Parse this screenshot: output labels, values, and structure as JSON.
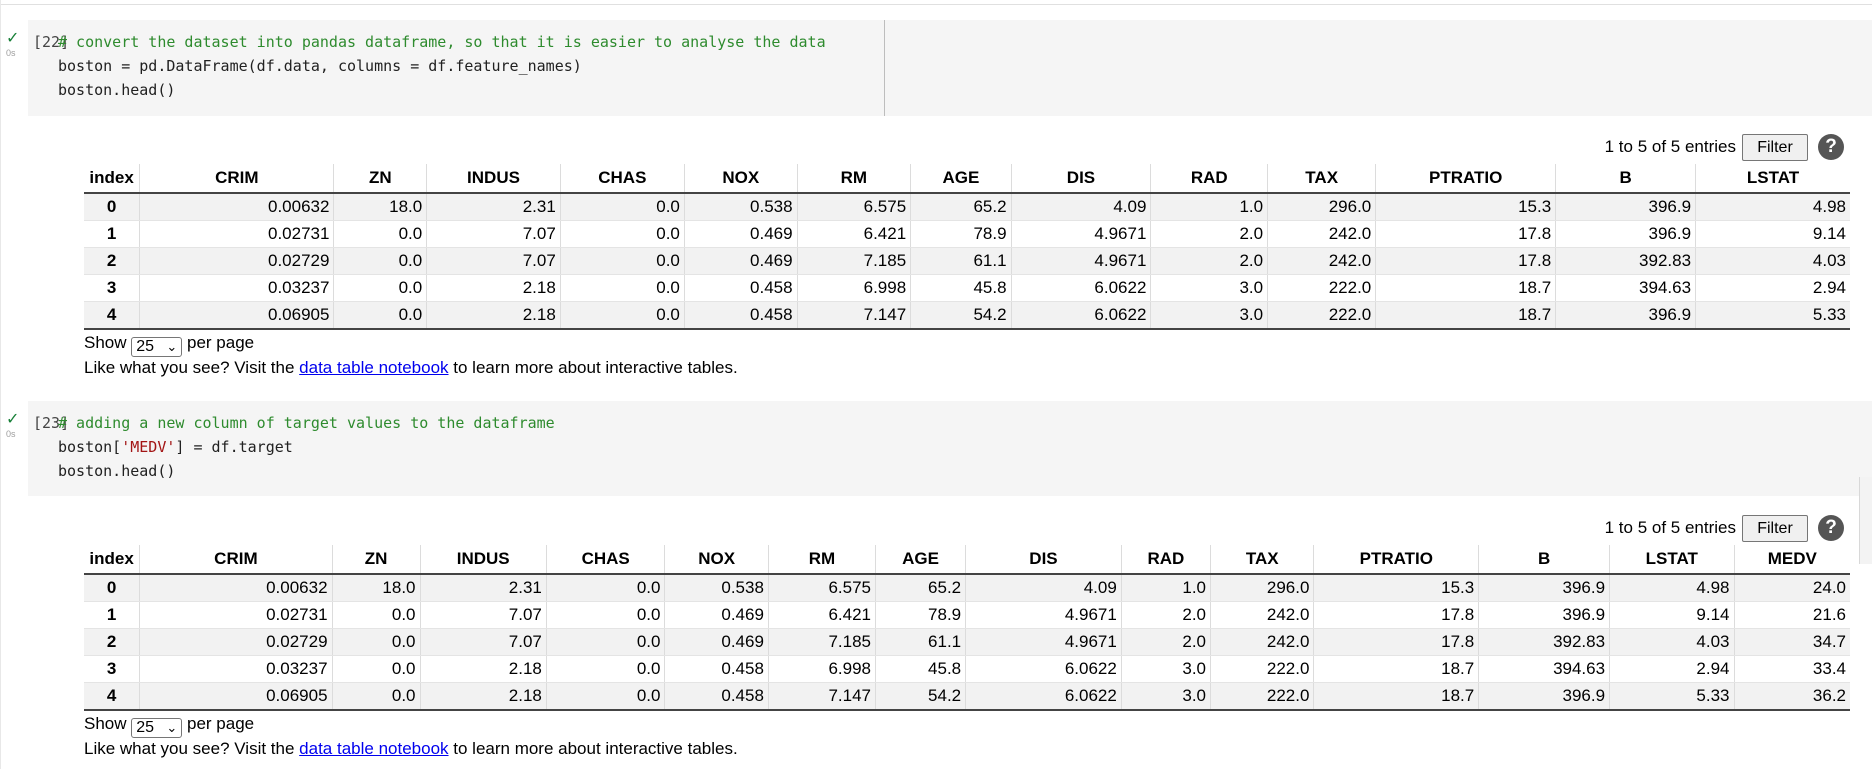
{
  "cells": [
    {
      "exec_count": "[22]",
      "run_time": "0s",
      "code": [
        {
          "comment": "# convert the dataset into pandas dataframe, so that it is easier to analyse the data"
        },
        {
          "text": "boston = pd.DataFrame(df.data, columns = df.feature_names)"
        },
        {
          "text": "boston.head()"
        }
      ],
      "output": {
        "entries_text": "1 to 5 of 5 entries",
        "filter_label": "Filter",
        "help_label": "?",
        "columns": [
          "index",
          "CRIM",
          "ZN",
          "INDUS",
          "CHAS",
          "NOX",
          "RM",
          "AGE",
          "DIS",
          "RAD",
          "TAX",
          "PTRATIO",
          "B",
          "LSTAT"
        ],
        "rows": [
          [
            "0",
            "0.00632",
            "18.0",
            "2.31",
            "0.0",
            "0.538",
            "6.575",
            "65.2",
            "4.09",
            "1.0",
            "296.0",
            "15.3",
            "396.9",
            "4.98"
          ],
          [
            "1",
            "0.02731",
            "0.0",
            "7.07",
            "0.0",
            "0.469",
            "6.421",
            "78.9",
            "4.9671",
            "2.0",
            "242.0",
            "17.8",
            "396.9",
            "9.14"
          ],
          [
            "2",
            "0.02729",
            "0.0",
            "7.07",
            "0.0",
            "0.469",
            "7.185",
            "61.1",
            "4.9671",
            "2.0",
            "242.0",
            "17.8",
            "392.83",
            "4.03"
          ],
          [
            "3",
            "0.03237",
            "0.0",
            "2.18",
            "0.0",
            "0.458",
            "6.998",
            "45.8",
            "6.0622",
            "3.0",
            "222.0",
            "18.7",
            "394.63",
            "2.94"
          ],
          [
            "4",
            "0.06905",
            "0.0",
            "2.18",
            "0.0",
            "0.458",
            "7.147",
            "54.2",
            "6.0622",
            "3.0",
            "222.0",
            "18.7",
            "396.9",
            "5.33"
          ]
        ],
        "show_label": "Show",
        "page_size": "25",
        "per_page_label": "per page",
        "promo_before": "Like what you see? Visit the",
        "promo_link": "data table notebook",
        "promo_after": "to learn more about interactive tables."
      }
    },
    {
      "exec_count": "[23]",
      "run_time": "0s",
      "code": [
        {
          "comment": "# adding a new column of target values to the dataframe"
        },
        {
          "pre": "boston[",
          "str": "'MEDV'",
          "post": "] = df.target"
        },
        {
          "text": "boston.head()"
        }
      ],
      "output": {
        "entries_text": "1 to 5 of 5 entries",
        "filter_label": "Filter",
        "help_label": "?",
        "columns": [
          "index",
          "CRIM",
          "ZN",
          "INDUS",
          "CHAS",
          "NOX",
          "RM",
          "AGE",
          "DIS",
          "RAD",
          "TAX",
          "PTRATIO",
          "B",
          "LSTAT",
          "MEDV"
        ],
        "rows": [
          [
            "0",
            "0.00632",
            "18.0",
            "2.31",
            "0.0",
            "0.538",
            "6.575",
            "65.2",
            "4.09",
            "1.0",
            "296.0",
            "15.3",
            "396.9",
            "4.98",
            "24.0"
          ],
          [
            "1",
            "0.02731",
            "0.0",
            "7.07",
            "0.0",
            "0.469",
            "6.421",
            "78.9",
            "4.9671",
            "2.0",
            "242.0",
            "17.8",
            "396.9",
            "9.14",
            "21.6"
          ],
          [
            "2",
            "0.02729",
            "0.0",
            "7.07",
            "0.0",
            "0.469",
            "7.185",
            "61.1",
            "4.9671",
            "2.0",
            "242.0",
            "17.8",
            "392.83",
            "4.03",
            "34.7"
          ],
          [
            "3",
            "0.03237",
            "0.0",
            "2.18",
            "0.0",
            "0.458",
            "6.998",
            "45.8",
            "6.0622",
            "3.0",
            "222.0",
            "18.7",
            "394.63",
            "2.94",
            "33.4"
          ],
          [
            "4",
            "0.06905",
            "0.0",
            "2.18",
            "0.0",
            "0.458",
            "7.147",
            "54.2",
            "6.0622",
            "3.0",
            "222.0",
            "18.7",
            "396.9",
            "5.33",
            "36.2"
          ]
        ],
        "show_label": "Show",
        "page_size": "25",
        "per_page_label": "per page",
        "promo_before": "Like what you see? Visit the",
        "promo_link": "data table notebook",
        "promo_after": "to learn more about interactive tables."
      }
    }
  ],
  "icons": {
    "run_status": "check-icon",
    "select": "chevron-down-icon",
    "help": "help-icon"
  },
  "colors": {
    "code_bg": "#f5f5f5",
    "comment": "#2e8b2e",
    "string": "#a31515",
    "check": "#188038",
    "link": "#0000ee"
  }
}
